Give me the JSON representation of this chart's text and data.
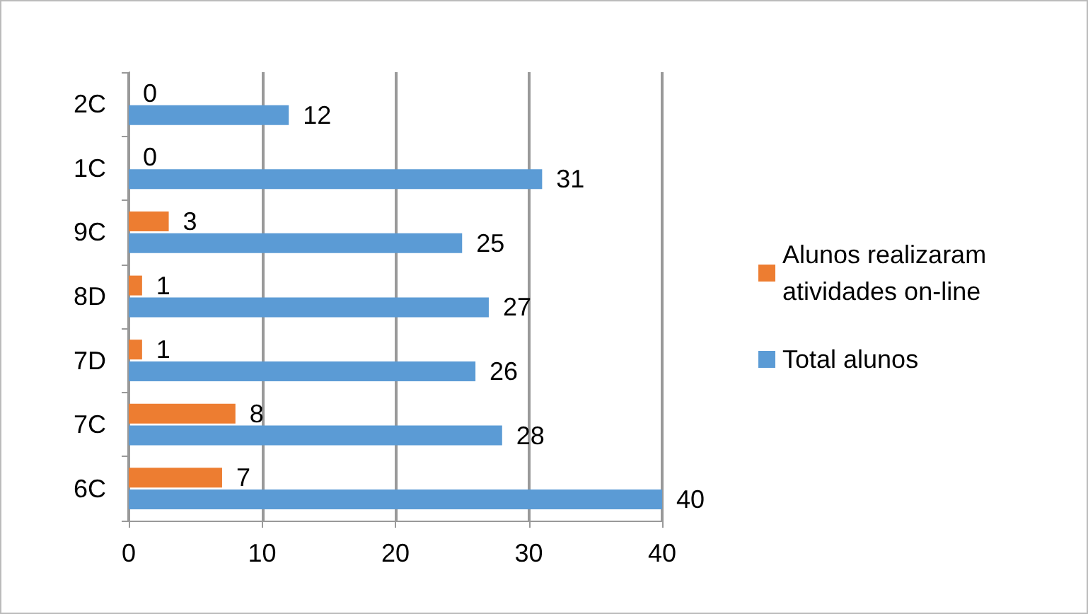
{
  "chart_data": {
    "type": "bar",
    "orientation": "horizontal",
    "categories": [
      "2C",
      "1C",
      "9C",
      "8D",
      "7D",
      "7C",
      "6C"
    ],
    "series": [
      {
        "name": "Alunos realizaram atividades on-line",
        "color": "#ed7d31",
        "values": [
          0,
          0,
          3,
          1,
          1,
          8,
          7
        ]
      },
      {
        "name": "Total alunos",
        "color": "#5b9bd5",
        "values": [
          12,
          31,
          25,
          27,
          26,
          28,
          40
        ]
      }
    ],
    "xlim": [
      0,
      40
    ],
    "xticks": [
      0,
      10,
      20,
      30,
      40
    ],
    "grid": "x",
    "legend": "right",
    "data_labels": true
  }
}
